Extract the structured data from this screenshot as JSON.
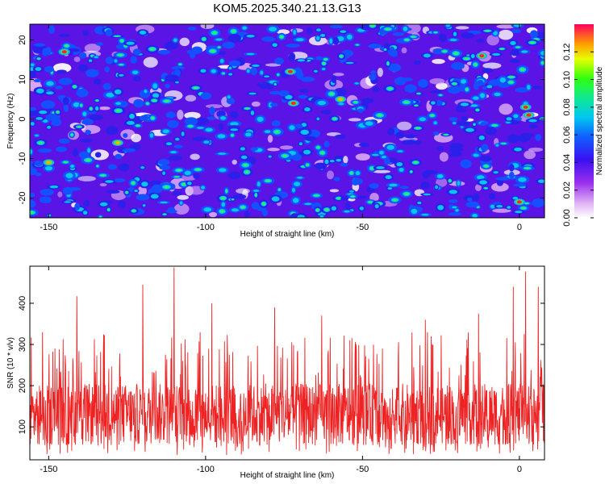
{
  "title": "KOM5.2025.340.21.13.G13",
  "chart_data": [
    {
      "type": "heatmap",
      "xlabel": "Height of straight line (km)",
      "ylabel": "Frequency (Hz)",
      "xlim": [
        -156,
        8
      ],
      "ylim": [
        -25,
        24
      ],
      "xticks": [
        -150,
        -100,
        -50,
        0
      ],
      "xtick_labels": [
        "-150",
        "-100",
        "-50",
        "0"
      ],
      "yticks": [
        -20,
        -10,
        0,
        10,
        20
      ],
      "ytick_labels": [
        "-20",
        "-10",
        "0",
        "10",
        "20"
      ],
      "colorbar": {
        "label": "Normalized spectral amplitude",
        "range": [
          0,
          0.14
        ],
        "ticks": [
          0,
          0.02,
          0.04,
          0.06,
          0.08,
          0.1,
          0.12
        ],
        "tick_labels": [
          "0.00",
          "0.02",
          "0.04",
          "0.06",
          "0.08",
          "0.10",
          "0.12"
        ]
      },
      "notable_peaks": [
        {
          "x": -145,
          "y": 17,
          "value": 0.13
        },
        {
          "x": -73,
          "y": 12,
          "value": 0.13
        },
        {
          "x": -72,
          "y": 4,
          "value": 0.13
        },
        {
          "x": -57,
          "y": 5,
          "value": 0.12
        },
        {
          "x": -12,
          "y": 16,
          "value": 0.14
        },
        {
          "x": 2,
          "y": 3,
          "value": 0.14
        },
        {
          "x": 3,
          "y": 1,
          "value": 0.13
        },
        {
          "x": 0,
          "y": -21,
          "value": 0.13
        },
        {
          "x": -150,
          "y": -11,
          "value": 0.12
        },
        {
          "x": -128,
          "y": -6,
          "value": 0.11
        }
      ]
    },
    {
      "type": "line",
      "xlabel": "Height of straight line (km)",
      "ylabel": "SNR (10 * v/v)",
      "xlim": [
        -156,
        8
      ],
      "ylim": [
        20,
        490
      ],
      "xticks": [
        -150,
        -100,
        -50,
        0
      ],
      "xtick_labels": [
        "-150",
        "-100",
        "-50",
        "0"
      ],
      "yticks": [
        100,
        200,
        300,
        400
      ],
      "ytick_labels": [
        "100",
        "200",
        "300",
        "400"
      ],
      "series": [
        {
          "name": "SNR",
          "color": "#ee2222",
          "baseline": 130,
          "typical_range": [
            40,
            300
          ],
          "max_value": 487,
          "max_at_x": -110
        }
      ],
      "notable_peaks": [
        {
          "x": -110,
          "y": 487
        },
        {
          "x": -120,
          "y": 445
        },
        {
          "x": -141,
          "y": 417
        },
        {
          "x": -98,
          "y": 400
        },
        {
          "x": -78,
          "y": 390
        },
        {
          "x": -63,
          "y": 370
        },
        {
          "x": -30,
          "y": 360
        },
        {
          "x": -13,
          "y": 375
        },
        {
          "x": -2,
          "y": 440
        },
        {
          "x": 2,
          "y": 477
        },
        {
          "x": 6,
          "y": 440
        },
        {
          "x": -152,
          "y": 330
        }
      ]
    }
  ]
}
